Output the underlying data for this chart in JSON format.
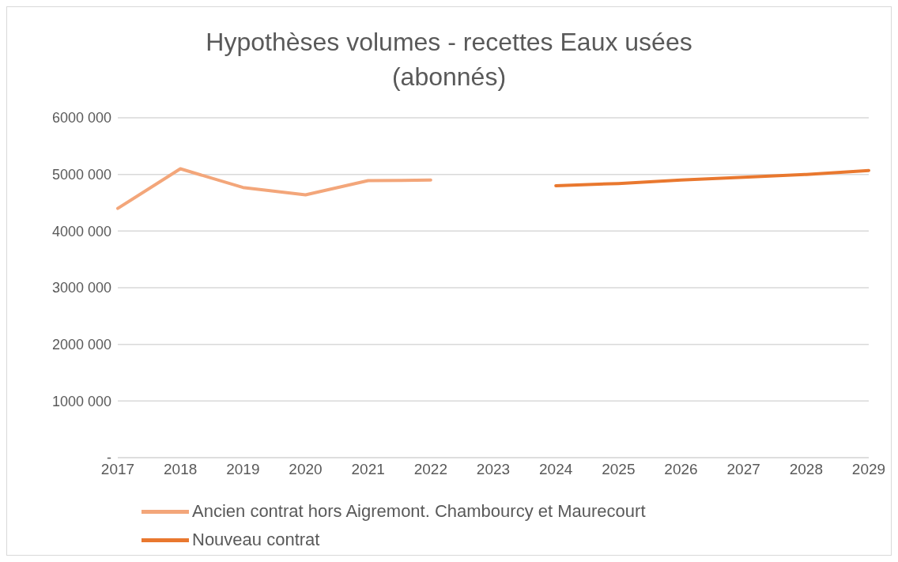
{
  "chart_data": {
    "type": "line",
    "title": "Hypothèses volumes - recettes Eaux usées (abonnés)",
    "categories": [
      "2017",
      "2018",
      "2019",
      "2020",
      "2021",
      "2022",
      "2023",
      "2024",
      "2025",
      "2026",
      "2027",
      "2028",
      "2029"
    ],
    "series": [
      {
        "name": "Ancien contrat hors Aigremont. Chambourcy et Maurecourt",
        "color": "#f3a67a",
        "values": [
          4400000,
          5100000,
          4770000,
          4640000,
          4890000,
          4900000,
          null,
          null,
          null,
          null,
          null,
          null,
          null
        ]
      },
      {
        "name": "Nouveau contrat",
        "color": "#e9782f",
        "values": [
          null,
          null,
          null,
          null,
          null,
          null,
          null,
          4800000,
          4840000,
          4900000,
          4950000,
          5000000,
          5070000
        ]
      }
    ],
    "ylim": [
      0,
      6000000
    ],
    "yticks": [
      {
        "value": 0,
        "label": "-"
      },
      {
        "value": 1000000,
        "label": "1000 000"
      },
      {
        "value": 2000000,
        "label": "2000 000"
      },
      {
        "value": 3000000,
        "label": "3000 000"
      },
      {
        "value": 4000000,
        "label": "4000 000"
      },
      {
        "value": 5000000,
        "label": "5000 000"
      },
      {
        "value": 6000000,
        "label": "6000 000"
      }
    ],
    "grid": "y",
    "legend": "bottom",
    "marker": "none",
    "line_style": "solid"
  }
}
